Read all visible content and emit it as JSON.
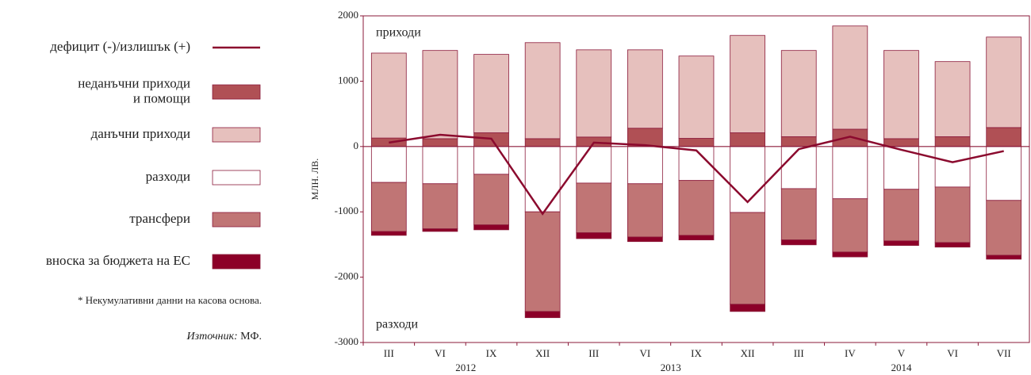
{
  "chart_data": {
    "type": "bar",
    "stacked": true,
    "ylabel": "МЛН. ЛВ.",
    "annotations": [
      "приходи",
      "разходи"
    ],
    "categories": [
      "III",
      "VI",
      "IX",
      "XII",
      "III",
      "VI",
      "IX",
      "XII",
      "III",
      "IV",
      "V",
      "VI",
      "VII"
    ],
    "year_labels": [
      "2012",
      "2013",
      "2014"
    ],
    "ylim": [
      -3000,
      2000
    ],
    "yticks": [
      -3000,
      -2000,
      -1000,
      0,
      1000,
      2000
    ],
    "series": [
      {
        "name": "дефицит (-)/излишък (+)",
        "type": "line",
        "color": "#8b0a2e",
        "values": [
          60,
          180,
          120,
          -1030,
          60,
          20,
          -60,
          -850,
          -40,
          150,
          -50,
          -240,
          -70
        ]
      },
      {
        "name": "неданъчни приходи\nи помощи",
        "color": "#b05055",
        "values": [
          130,
          120,
          210,
          120,
          145,
          280,
          125,
          210,
          150,
          265,
          120,
          150,
          290
        ]
      },
      {
        "name": "данъчни приходи",
        "color": "#e6c0bd",
        "values": [
          1300,
          1350,
          1200,
          1470,
          1335,
          1200,
          1260,
          1490,
          1320,
          1580,
          1350,
          1150,
          1385
        ]
      },
      {
        "name": "разходи",
        "color": "#ffffff",
        "values": [
          -550,
          -570,
          -425,
          -1000,
          -560,
          -570,
          -520,
          -1010,
          -645,
          -800,
          -655,
          -620,
          -825
        ]
      },
      {
        "name": "трансфери",
        "color": "#c07575",
        "values": [
          -750,
          -690,
          -775,
          -1525,
          -760,
          -815,
          -840,
          -1405,
          -785,
          -815,
          -790,
          -850,
          -840
        ]
      },
      {
        "name": "вноска за бюджета на ЕС",
        "color": "#8c0028",
        "values": [
          -60,
          -40,
          -75,
          -95,
          -90,
          -70,
          -70,
          -110,
          -75,
          -75,
          -70,
          -70,
          -60
        ]
      }
    ],
    "note": "* Некумулативни данни на касова основа.",
    "source": {
      "label": "Източник:",
      "value": "МФ."
    }
  }
}
